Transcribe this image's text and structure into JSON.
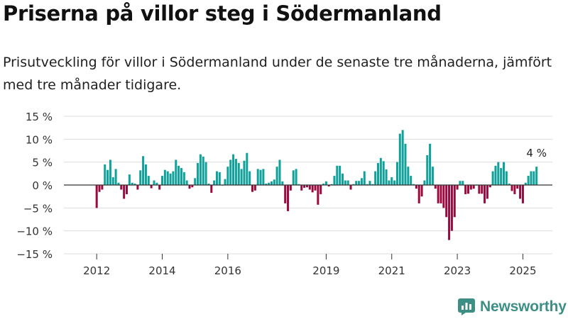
{
  "title": "Priserna på villor steg i Södermanland",
  "subtitle": "Prisutveckling för villor i Södermanland under de senaste tre månaderna, jämfört med tre månader tidigare.",
  "logo_text": "Newsworthy",
  "colors": {
    "positive": "#0fa19a",
    "negative": "#9b0a3f",
    "grid": "#dcdcdc",
    "axis": "#333333",
    "brand": "#3d8f86"
  },
  "chart_data": {
    "type": "bar",
    "title": "",
    "xlabel": "",
    "ylabel": "",
    "ylim": [
      -15,
      15
    ],
    "y_ticks": [
      15,
      10,
      5,
      0,
      -5,
      -10,
      -15
    ],
    "y_tick_labels": [
      "15 %",
      "10 %",
      "5 %",
      "0 %",
      "−5 %",
      "−10 %",
      "−15 %"
    ],
    "x_range": [
      2011.0,
      2025.9
    ],
    "x_ticks": [
      2012,
      2014,
      2016,
      2019,
      2021,
      2023,
      2025
    ],
    "x_tick_labels": [
      "2012",
      "2014",
      "2016",
      "2019",
      "2021",
      "2023",
      "2025"
    ],
    "grid": true,
    "legend": "none",
    "start": "2012-01",
    "frequency": "monthly",
    "annotation": {
      "text": "4 %",
      "target": "last"
    },
    "values": [
      -5,
      -1.5,
      -1,
      4.5,
      3.3,
      5.5,
      1.7,
      3.5,
      0.5,
      -1,
      -3,
      -2,
      2.3,
      0.5,
      0.3,
      -1,
      3.2,
      6.3,
      4.5,
      2,
      -0.7,
      1,
      0.5,
      -1,
      2,
      3.3,
      3,
      2.5,
      3,
      5.5,
      4.2,
      3.7,
      2.8,
      1,
      -0.8,
      -0.5,
      1.5,
      4.8,
      6.7,
      6.2,
      5,
      0.3,
      -1.7,
      1,
      3,
      2.8,
      0,
      1.3,
      4,
      5.5,
      6.7,
      5.7,
      4.8,
      3.5,
      5.3,
      7,
      3,
      -1.5,
      -1.2,
      3.5,
      3.3,
      3.5,
      0.3,
      0.5,
      0.8,
      1.2,
      4,
      5.5,
      0.8,
      -4,
      -5.7,
      -1.2,
      3.2,
      3.5,
      0.2,
      -1.2,
      -0.6,
      -0.5,
      -1,
      -1.6,
      -1.2,
      -4.3,
      -2,
      0.3,
      0.8,
      -0.3,
      0.2,
      2,
      4.2,
      4.2,
      2.5,
      1,
      1,
      -1,
      0.2,
      0.9,
      0.9,
      1.5,
      3,
      0.2,
      0.9,
      0.2,
      3,
      4.8,
      5.9,
      5.2,
      3.4,
      1,
      1.7,
      1,
      5,
      11.2,
      12,
      9,
      4,
      2,
      0.2,
      -0.8,
      -4,
      -2.5,
      1,
      6.5,
      9,
      4,
      -0.8,
      -4,
      -4,
      -5,
      -7,
      -12,
      -10,
      -7,
      -1,
      0.9,
      0.9,
      -2,
      -1.9,
      -1,
      -0.8,
      0,
      -1.9,
      -1.9,
      -4,
      -3,
      -0.5,
      3,
      4.2,
      5,
      3.7,
      5,
      3,
      0.3,
      -1.3,
      -2,
      -0.8,
      -3,
      -4,
      0.5,
      2,
      3,
      3,
      4
    ]
  }
}
